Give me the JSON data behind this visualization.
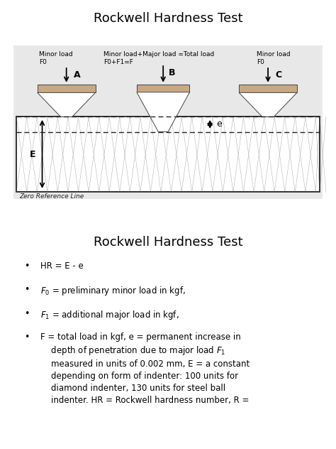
{
  "title_top": "Rockwell Hardness Test",
  "title_bottom": "Rockwell Hardness Test",
  "page_bg": "#ffffff",
  "diagram_bg": "#e8e8e8",
  "indenter_fill": "#c8a882",
  "indenter_edge": "#444444",
  "mesh_color": "#999999",
  "label_minor_A": "Minor load\nF0",
  "label_major_B": "Minor load+Major load =Total load\nF0+F1=F",
  "label_minor_C": "Minor load\nF0",
  "label_zero_ref": "Zero Reference Line",
  "bullet_items": [
    "HR = E - e",
    "$F_0$ = preliminary minor load in kgf,",
    "$F_1$ = additional major load in kgf,",
    "F = total load in kgf, e = permanent increase in\ndepth of penetration due to major load $F_1$\nmeasured in units of 0.002 mm, E = a constant\ndepending on form of indenter: 100 units for\ndiamond indenter, 130 units for steel ball\nindenter. HR = Rockwell hardness number, R ="
  ]
}
